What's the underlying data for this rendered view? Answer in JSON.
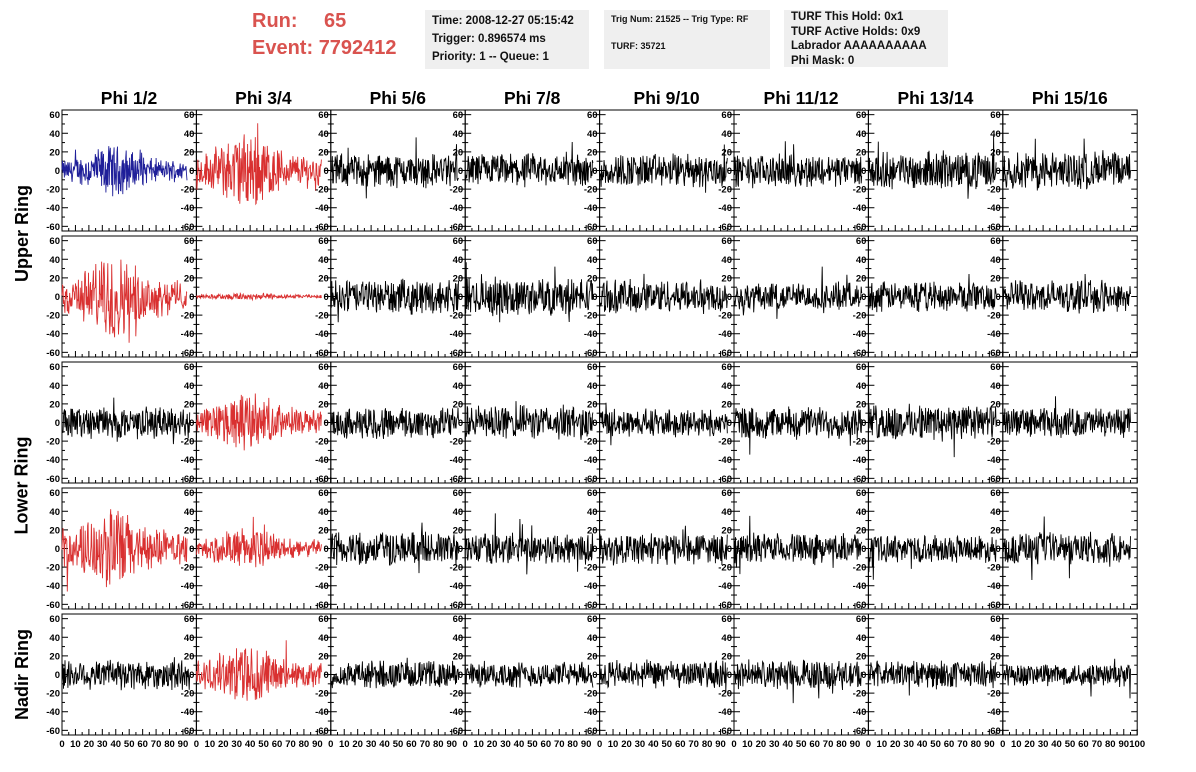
{
  "run": {
    "run_label": "Run:",
    "run_value": "65",
    "event_label": "Event:",
    "event_value": "7792412",
    "color": "#d9534f"
  },
  "info": {
    "time": "Time: 2008-12-27 05:15:42",
    "trigger": "Trigger: 0.896574 ms",
    "priority": "Priority: 1 -- Queue: 1",
    "trig_num": "Trig Num: 21525 -- Trig Type: RF",
    "turf": "TURF: 35721",
    "turf_this_hold": "TURF This Hold: 0x1",
    "turf_active_holds": "TURF Active Holds: 0x9",
    "labrador": "Labrador AAAAAAAAAA",
    "phi_mask": "Phi Mask: 0"
  },
  "chart_data": {
    "type": "line",
    "title": "",
    "columns": [
      "Phi 1/2",
      "Phi 3/4",
      "Phi 5/6",
      "Phi 7/8",
      "Phi 9/10",
      "Phi 11/12",
      "Phi 13/14",
      "Phi 15/16"
    ],
    "row_labels": [
      "Upper Ring",
      "Upper Ring",
      "Lower Ring",
      "Lower Ring",
      "Nadir Ring"
    ],
    "row_label_spans": [
      {
        "label": "Upper Ring",
        "rows": [
          0,
          1
        ]
      },
      {
        "label": "Lower Ring",
        "rows": [
          2,
          3
        ]
      },
      {
        "label": "Nadir Ring",
        "rows": [
          4,
          4
        ]
      }
    ],
    "xlim": [
      0,
      100
    ],
    "ylim": [
      -65,
      65
    ],
    "x_tick_labels": [
      "0",
      "10",
      "20",
      "30",
      "40",
      "50",
      "60",
      "70",
      "80",
      "90",
      "100"
    ],
    "y_tick_labels": [
      "-60",
      "-40",
      "-20",
      "0",
      "20",
      "40",
      "60"
    ],
    "colors": {
      "default": "#000000",
      "red": "#d93030",
      "blue": "#1f1f99"
    },
    "trace_colors": [
      [
        "blue",
        "red",
        "default",
        "default",
        "default",
        "default",
        "default",
        "default"
      ],
      [
        "red",
        "red",
        "default",
        "default",
        "default",
        "default",
        "default",
        "default"
      ],
      [
        "default",
        "red",
        "default",
        "default",
        "default",
        "default",
        "default",
        "default"
      ],
      [
        "red",
        "red",
        "default",
        "default",
        "default",
        "default",
        "default",
        "default"
      ],
      [
        "default",
        "red",
        "default",
        "default",
        "default",
        "default",
        "default",
        "default"
      ]
    ],
    "trace_amplitude": [
      [
        18,
        28,
        16,
        16,
        16,
        15,
        17,
        18
      ],
      [
        30,
        3,
        16,
        18,
        16,
        13,
        14,
        15
      ],
      [
        15,
        22,
        15,
        16,
        13,
        15,
        17,
        14
      ],
      [
        30,
        16,
        16,
        15,
        15,
        14,
        13,
        15
      ],
      [
        15,
        22,
        13,
        12,
        13,
        14,
        13,
        11
      ]
    ]
  }
}
